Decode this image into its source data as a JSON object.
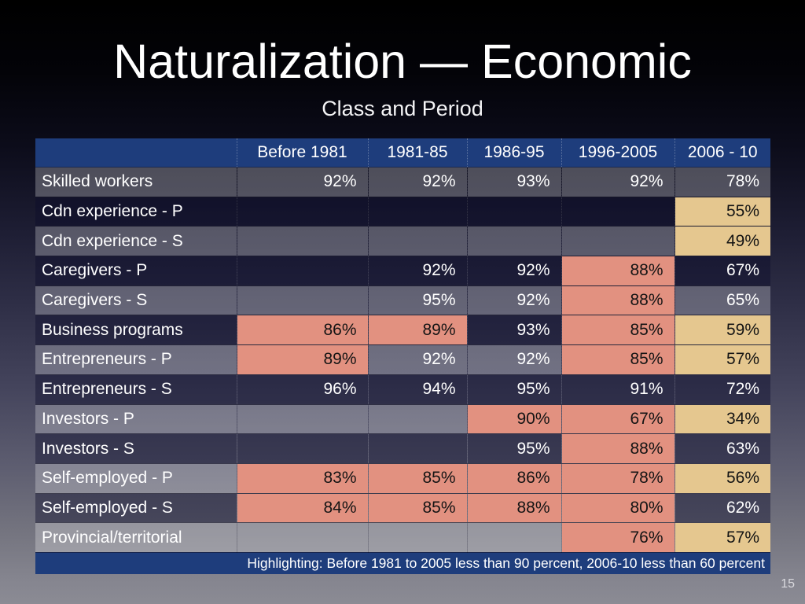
{
  "slide": {
    "title": "Naturalization — Economic",
    "subtitle": "Class and Period",
    "page_number": "15"
  },
  "colors": {
    "header_bg": "#1e3d7c",
    "salmon_highlight": "#e29180",
    "tan_highlight": "#e5c78f"
  },
  "table": {
    "columns": [
      "",
      "Before 1981",
      "1981-85",
      "1986-95",
      "1996-2005",
      "2006 - 10"
    ],
    "rows": [
      {
        "label": "Skilled workers",
        "values": [
          "92%",
          "92%",
          "93%",
          "92%",
          "78%"
        ],
        "hl": [
          "none",
          "none",
          "none",
          "none",
          "none"
        ]
      },
      {
        "label": "Cdn experience - P",
        "values": [
          "",
          "",
          "",
          "",
          "55%"
        ],
        "hl": [
          "none",
          "none",
          "none",
          "none",
          "tan"
        ]
      },
      {
        "label": "Cdn experience - S",
        "values": [
          "",
          "",
          "",
          "",
          "49%"
        ],
        "hl": [
          "none",
          "none",
          "none",
          "none",
          "tan"
        ]
      },
      {
        "label": "Caregivers - P",
        "values": [
          "",
          "92%",
          "92%",
          "88%",
          "67%"
        ],
        "hl": [
          "none",
          "none",
          "none",
          "salmon",
          "none"
        ]
      },
      {
        "label": "Caregivers - S",
        "values": [
          "",
          "95%",
          "92%",
          "88%",
          "65%"
        ],
        "hl": [
          "none",
          "none",
          "none",
          "salmon",
          "none"
        ]
      },
      {
        "label": "Business programs",
        "values": [
          "86%",
          "89%",
          "93%",
          "85%",
          "59%"
        ],
        "hl": [
          "salmon",
          "salmon",
          "none",
          "salmon",
          "tan"
        ]
      },
      {
        "label": "Entrepreneurs - P",
        "values": [
          "89%",
          "92%",
          "92%",
          "85%",
          "57%"
        ],
        "hl": [
          "salmon",
          "none",
          "none",
          "salmon",
          "tan"
        ]
      },
      {
        "label": "Entrepreneurs - S",
        "values": [
          "96%",
          "94%",
          "95%",
          "91%",
          "72%"
        ],
        "hl": [
          "none",
          "none",
          "none",
          "none",
          "none"
        ]
      },
      {
        "label": "Investors - P",
        "values": [
          "",
          "",
          "90%",
          "67%",
          "34%"
        ],
        "hl": [
          "none",
          "none",
          "salmon",
          "salmon",
          "tan"
        ]
      },
      {
        "label": "Investors - S",
        "values": [
          "",
          "",
          "95%",
          "88%",
          "63%"
        ],
        "hl": [
          "none",
          "none",
          "none",
          "salmon",
          "none"
        ]
      },
      {
        "label": "Self-employed - P",
        "values": [
          "83%",
          "85%",
          "86%",
          "78%",
          "56%"
        ],
        "hl": [
          "salmon",
          "salmon",
          "salmon",
          "salmon",
          "tan"
        ]
      },
      {
        "label": "Self-employed - S",
        "values": [
          "84%",
          "85%",
          "88%",
          "80%",
          "62%"
        ],
        "hl": [
          "salmon",
          "salmon",
          "salmon",
          "salmon",
          "none"
        ]
      },
      {
        "label": "Provincial/territorial",
        "values": [
          "",
          "",
          "",
          "76%",
          "57%"
        ],
        "hl": [
          "none",
          "none",
          "none",
          "salmon",
          "tan"
        ]
      }
    ],
    "footnote": "Highlighting: Before 1981 to 2005 less than 90 percent, 2006-10 less than 60 percent"
  },
  "chart_data": {
    "type": "table",
    "title": "Naturalization — Economic: Class and Period",
    "categories": [
      "Before 1981",
      "1981-85",
      "1986-95",
      "1996-2005",
      "2006 - 10"
    ],
    "series": [
      {
        "name": "Skilled workers",
        "values": [
          92,
          92,
          93,
          92,
          78
        ]
      },
      {
        "name": "Cdn experience - P",
        "values": [
          null,
          null,
          null,
          null,
          55
        ]
      },
      {
        "name": "Cdn experience - S",
        "values": [
          null,
          null,
          null,
          null,
          49
        ]
      },
      {
        "name": "Caregivers - P",
        "values": [
          null,
          92,
          92,
          88,
          67
        ]
      },
      {
        "name": "Caregivers - S",
        "values": [
          null,
          95,
          92,
          88,
          65
        ]
      },
      {
        "name": "Business programs",
        "values": [
          86,
          89,
          93,
          85,
          59
        ]
      },
      {
        "name": "Entrepreneurs - P",
        "values": [
          89,
          92,
          92,
          85,
          57
        ]
      },
      {
        "name": "Entrepreneurs - S",
        "values": [
          96,
          94,
          95,
          91,
          72
        ]
      },
      {
        "name": "Investors - P",
        "values": [
          null,
          null,
          90,
          67,
          34
        ]
      },
      {
        "name": "Investors - S",
        "values": [
          null,
          null,
          95,
          88,
          63
        ]
      },
      {
        "name": "Self-employed - P",
        "values": [
          83,
          85,
          86,
          78,
          56
        ]
      },
      {
        "name": "Self-employed - S",
        "values": [
          84,
          85,
          88,
          80,
          62
        ]
      },
      {
        "name": "Provincial/territorial",
        "values": [
          null,
          null,
          null,
          76,
          57
        ]
      }
    ],
    "units": "percent",
    "annotations": "Highlighting: Before 1981 to 2005 less than 90 percent, 2006-10 less than 60 percent"
  }
}
